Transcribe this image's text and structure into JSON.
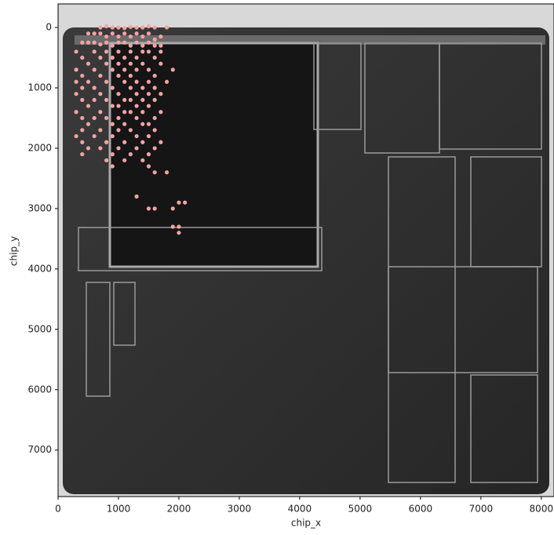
{
  "chart_data": {
    "type": "scatter",
    "x_label": "chip_x",
    "y_label": "chip_y",
    "color": "#f4a3a3",
    "xlim": [
      0,
      8210
    ],
    "ylim": [
      7770,
      -390
    ],
    "xticks": [
      0,
      1000,
      2000,
      3000,
      4000,
      5000,
      6000,
      7000,
      8000
    ],
    "yticks": [
      0,
      1000,
      2000,
      3000,
      4000,
      5000,
      6000,
      7000
    ],
    "x": [
      700,
      800,
      900,
      1000,
      1100,
      1200,
      1300,
      1400,
      1500,
      1600,
      1800,
      500,
      600,
      700,
      800,
      900,
      1000,
      1100,
      1200,
      1300,
      1400,
      1500,
      1600,
      1700,
      400,
      500,
      600,
      700,
      800,
      900,
      1000,
      1100,
      1200,
      1300,
      1400,
      1500,
      1600,
      1700,
      300,
      600,
      800,
      1000,
      1200,
      1400,
      1500,
      1700,
      400,
      700,
      900,
      1100,
      1300,
      1600,
      500,
      800,
      1000,
      1200,
      1400,
      1700,
      300,
      600,
      900,
      1100,
      1300,
      1500,
      1900,
      400,
      700,
      1000,
      1200,
      1600,
      300,
      500,
      800,
      1100,
      1300,
      1500,
      1800,
      400,
      600,
      900,
      1200,
      1400,
      1600,
      300,
      700,
      1000,
      1300,
      1500,
      1700,
      400,
      600,
      800,
      1100,
      1200,
      1400,
      1600,
      500,
      900,
      1000,
      1300,
      1500,
      300,
      700,
      1100,
      1200,
      1400,
      1700,
      400,
      600,
      800,
      1000,
      1300,
      1600,
      500,
      900,
      1100,
      1400,
      1500,
      400,
      700,
      1000,
      1200,
      1600,
      300,
      600,
      900,
      1300,
      1500,
      400,
      800,
      1100,
      1400,
      1700,
      500,
      700,
      1000,
      1300,
      1600,
      400,
      900,
      1200,
      1500,
      800,
      1100,
      1400,
      900,
      1500,
      1600,
      1800,
      1300,
      1500,
      1600,
      1900,
      2000,
      2100,
      1900,
      2000,
      2000
    ],
    "values": [
      0,
      -20,
      0,
      0,
      10,
      -10,
      0,
      0,
      -20,
      0,
      0,
      100,
      100,
      100,
      150,
      100,
      150,
      100,
      150,
      100,
      150,
      100,
      200,
      150,
      250,
      250,
      250,
      280,
      250,
      300,
      250,
      250,
      300,
      250,
      300,
      250,
      300,
      300,
      400,
      400,
      400,
      400,
      400,
      400,
      400,
      400,
      500,
      500,
      500,
      500,
      500,
      500,
      600,
      600,
      600,
      600,
      600,
      600,
      700,
      700,
      700,
      700,
      700,
      700,
      700,
      800,
      800,
      800,
      800,
      800,
      900,
      900,
      900,
      900,
      900,
      900,
      900,
      1000,
      1000,
      1000,
      1000,
      1000,
      1000,
      1100,
      1100,
      1100,
      1100,
      1100,
      1100,
      1200,
      1200,
      1200,
      1200,
      1200,
      1200,
      1200,
      1300,
      1300,
      1300,
      1300,
      1300,
      1400,
      1400,
      1400,
      1400,
      1400,
      1400,
      1500,
      1500,
      1500,
      1500,
      1500,
      1500,
      1600,
      1600,
      1600,
      1600,
      1600,
      1700,
      1700,
      1700,
      1700,
      1700,
      1800,
      1800,
      1800,
      1800,
      1800,
      1900,
      1900,
      1900,
      1900,
      1900,
      2000,
      2000,
      2000,
      2000,
      2000,
      2100,
      2100,
      2100,
      2100,
      2200,
      2200,
      2200,
      2300,
      2300,
      2400,
      2400,
      2800,
      3000,
      3000,
      3000,
      2900,
      2900,
      3300,
      3300,
      3400
    ]
  }
}
